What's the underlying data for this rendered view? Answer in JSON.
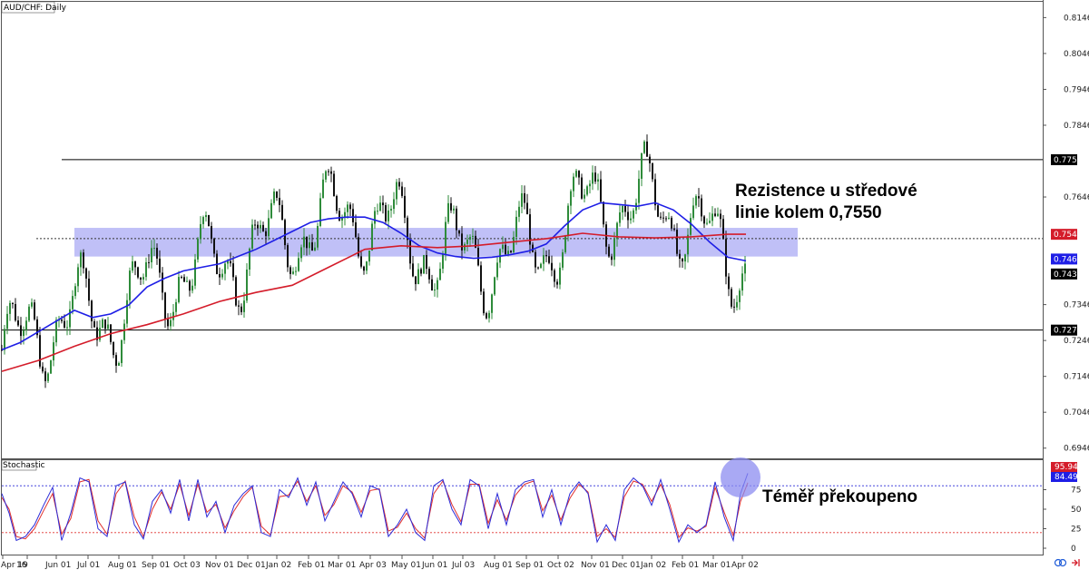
{
  "title": "AUD/CHF: Daily",
  "indicator_label": "Stochastic",
  "annotations": {
    "resistance_line1": "Rezistence u středové",
    "resistance_line2": "linie kolem 0,7550",
    "overbought": "Téměř překoupeno"
  },
  "colors": {
    "bull": "#2e8b3a",
    "bear": "#111111",
    "sma_fast": "#1e1ee6",
    "sma_slow": "#d41c2a",
    "zone": "#8c8cf0",
    "stoch_k": "#2b2bd8",
    "stoch_d": "#e0302e",
    "circle": "#8c8cf0"
  },
  "chart_data": [
    {
      "type": "candlestick",
      "title": "AUD/CHF: Daily",
      "y_ticks": [
        "0.8146",
        "0.8046",
        "0.7946",
        "0.7846",
        "0.7750",
        "0.7646",
        "0.7542",
        "0.7468",
        "0.7439",
        "0.7346",
        "0.7275",
        "0.7246",
        "0.7146",
        "0.7046",
        "0.6946"
      ],
      "ylim": [
        0.692,
        0.819
      ],
      "x_ticks": [
        "Apr 19",
        "16",
        "Jun 01",
        "Jul 01",
        "Aug 01",
        "Sep 01",
        "Oct 03",
        "Nov 01",
        "Dec 01",
        "Jan 02",
        "Feb 01",
        "Mar 01",
        "Apr 03",
        "May 01",
        "Jun 01",
        "Jul 03",
        "Aug 01",
        "Sep 01",
        "Oct 02",
        "Nov 01",
        "Dec 01",
        "Jan 02",
        "Feb 01",
        "Mar 01",
        "Apr 02"
      ],
      "horizontal_lines": [
        {
          "value": 0.775,
          "style": "solid",
          "label": "0.7750"
        },
        {
          "value": 0.7275,
          "style": "solid",
          "label": "0.7275"
        },
        {
          "value": 0.753,
          "style": "dotted"
        }
      ],
      "zone": {
        "from": 0.748,
        "to": 0.756
      },
      "price_tags": [
        {
          "label": "0.7542",
          "color": "red"
        },
        {
          "label": "0.7468",
          "color": "blue"
        },
        {
          "label": "0.7439",
          "color": "black"
        }
      ],
      "series": [
        {
          "name": "SMA fast",
          "points": [
            [
              0,
              0.722
            ],
            [
              20,
              0.724
            ],
            [
              40,
              0.727
            ],
            [
              60,
              0.73
            ],
            [
              80,
              0.733
            ],
            [
              100,
              0.731
            ],
            [
              120,
              0.732
            ],
            [
              140,
              0.7345
            ],
            [
              160,
              0.7395
            ],
            [
              180,
              0.742
            ],
            [
              200,
              0.744
            ],
            [
              220,
              0.745
            ],
            [
              240,
              0.746
            ],
            [
              260,
              0.748
            ],
            [
              280,
              0.75
            ],
            [
              300,
              0.7525
            ],
            [
              320,
              0.755
            ],
            [
              340,
              0.7575
            ],
            [
              360,
              0.7585
            ],
            [
              380,
              0.759
            ],
            [
              400,
              0.759
            ],
            [
              420,
              0.7575
            ],
            [
              440,
              0.7545
            ],
            [
              460,
              0.751
            ],
            [
              480,
              0.749
            ],
            [
              500,
              0.748
            ],
            [
              520,
              0.7475
            ],
            [
              540,
              0.7478
            ],
            [
              560,
              0.7485
            ],
            [
              580,
              0.7495
            ],
            [
              600,
              0.7515
            ],
            [
              620,
              0.7565
            ],
            [
              640,
              0.761
            ],
            [
              660,
              0.763
            ],
            [
              680,
              0.7625
            ],
            [
              700,
              0.762
            ],
            [
              720,
              0.763
            ],
            [
              740,
              0.761
            ],
            [
              760,
              0.757
            ],
            [
              780,
              0.752
            ],
            [
              800,
              0.7478
            ],
            [
              820,
              0.7468
            ]
          ]
        },
        {
          "name": "SMA slow",
          "points": [
            [
              0,
              0.716
            ],
            [
              40,
              0.719
            ],
            [
              80,
              0.723
            ],
            [
              120,
              0.7265
            ],
            [
              160,
              0.729
            ],
            [
              200,
              0.732
            ],
            [
              240,
              0.7355
            ],
            [
              280,
              0.738
            ],
            [
              320,
              0.74
            ],
            [
              360,
              0.745
            ],
            [
              400,
              0.75
            ],
            [
              440,
              0.751
            ],
            [
              480,
              0.7505
            ],
            [
              520,
              0.751
            ],
            [
              560,
              0.752
            ],
            [
              600,
              0.753
            ],
            [
              640,
              0.7545
            ],
            [
              680,
              0.7535
            ],
            [
              720,
              0.7532
            ],
            [
              760,
              0.7535
            ],
            [
              800,
              0.7542
            ],
            [
              820,
              0.7542
            ]
          ]
        }
      ]
    },
    {
      "type": "line",
      "title": "Stochastic",
      "y_ticks": [
        "100",
        "75",
        "50",
        "25",
        "0"
      ],
      "ylim": [
        0,
        100
      ],
      "levels": [
        80,
        20
      ],
      "current_values": [
        "95.94",
        "84.49"
      ],
      "series": [
        {
          "name": "%K",
          "points": [
            [
              0,
              70
            ],
            [
              8,
              45
            ],
            [
              16,
              10
            ],
            [
              26,
              15
            ],
            [
              36,
              30
            ],
            [
              46,
              55
            ],
            [
              56,
              78
            ],
            [
              66,
              10
            ],
            [
              76,
              45
            ],
            [
              86,
              90
            ],
            [
              96,
              85
            ],
            [
              106,
              25
            ],
            [
              116,
              15
            ],
            [
              126,
              80
            ],
            [
              136,
              85
            ],
            [
              146,
              30
            ],
            [
              156,
              12
            ],
            [
              166,
              60
            ],
            [
              176,
              75
            ],
            [
              186,
              45
            ],
            [
              196,
              88
            ],
            [
              206,
              35
            ],
            [
              216,
              88
            ],
            [
              226,
              40
            ],
            [
              236,
              60
            ],
            [
              246,
              20
            ],
            [
              256,
              55
            ],
            [
              266,
              70
            ],
            [
              276,
              80
            ],
            [
              286,
              20
            ],
            [
              296,
              15
            ],
            [
              306,
              75
            ],
            [
              316,
              65
            ],
            [
              326,
              90
            ],
            [
              336,
              55
            ],
            [
              346,
              85
            ],
            [
              356,
              35
            ],
            [
              366,
              60
            ],
            [
              376,
              85
            ],
            [
              386,
              70
            ],
            [
              396,
              40
            ],
            [
              406,
              80
            ],
            [
              416,
              75
            ],
            [
              426,
              15
            ],
            [
              436,
              30
            ],
            [
              446,
              50
            ],
            [
              456,
              20
            ],
            [
              466,
              10
            ],
            [
              476,
              80
            ],
            [
              486,
              88
            ],
            [
              496,
              50
            ],
            [
              506,
              30
            ],
            [
              516,
              88
            ],
            [
              526,
              80
            ],
            [
              536,
              25
            ],
            [
              546,
              70
            ],
            [
              556,
              30
            ],
            [
              566,
              75
            ],
            [
              576,
              85
            ],
            [
              586,
              88
            ],
            [
              596,
              40
            ],
            [
              606,
              75
            ],
            [
              616,
              30
            ],
            [
              626,
              70
            ],
            [
              636,
              85
            ],
            [
              646,
              70
            ],
            [
              656,
              8
            ],
            [
              666,
              30
            ],
            [
              676,
              10
            ],
            [
              686,
              75
            ],
            [
              696,
              90
            ],
            [
              706,
              80
            ],
            [
              716,
              55
            ],
            [
              726,
              88
            ],
            [
              736,
              50
            ],
            [
              746,
              8
            ],
            [
              756,
              30
            ],
            [
              766,
              20
            ],
            [
              776,
              30
            ],
            [
              786,
              85
            ],
            [
              796,
              40
            ],
            [
              806,
              10
            ],
            [
              814,
              70
            ],
            [
              822,
              96
            ]
          ]
        },
        {
          "name": "%D",
          "points": [
            [
              0,
              65
            ],
            [
              8,
              50
            ],
            [
              16,
              15
            ],
            [
              26,
              12
            ],
            [
              36,
              25
            ],
            [
              46,
              48
            ],
            [
              56,
              70
            ],
            [
              66,
              18
            ],
            [
              76,
              38
            ],
            [
              86,
              85
            ],
            [
              96,
              88
            ],
            [
              106,
              35
            ],
            [
              116,
              18
            ],
            [
              126,
              70
            ],
            [
              136,
              86
            ],
            [
              146,
              40
            ],
            [
              156,
              15
            ],
            [
              166,
              50
            ],
            [
              176,
              72
            ],
            [
              186,
              50
            ],
            [
              196,
              82
            ],
            [
              206,
              42
            ],
            [
              216,
              82
            ],
            [
              226,
              46
            ],
            [
              236,
              56
            ],
            [
              246,
              26
            ],
            [
              256,
              48
            ],
            [
              266,
              66
            ],
            [
              276,
              78
            ],
            [
              286,
              28
            ],
            [
              296,
              17
            ],
            [
              306,
              66
            ],
            [
              316,
              68
            ],
            [
              326,
              86
            ],
            [
              336,
              60
            ],
            [
              346,
              80
            ],
            [
              356,
              42
            ],
            [
              366,
              56
            ],
            [
              376,
              80
            ],
            [
              386,
              72
            ],
            [
              396,
              46
            ],
            [
              406,
              74
            ],
            [
              416,
              76
            ],
            [
              426,
              22
            ],
            [
              436,
              27
            ],
            [
              446,
              45
            ],
            [
              456,
              25
            ],
            [
              466,
              13
            ],
            [
              476,
              70
            ],
            [
              486,
              86
            ],
            [
              496,
              56
            ],
            [
              506,
              34
            ],
            [
              516,
              82
            ],
            [
              526,
              82
            ],
            [
              536,
              32
            ],
            [
              546,
              62
            ],
            [
              556,
              36
            ],
            [
              566,
              68
            ],
            [
              576,
              82
            ],
            [
              586,
              86
            ],
            [
              596,
              48
            ],
            [
              606,
              68
            ],
            [
              616,
              36
            ],
            [
              626,
              64
            ],
            [
              636,
              82
            ],
            [
              646,
              72
            ],
            [
              656,
              15
            ],
            [
              666,
              25
            ],
            [
              676,
              14
            ],
            [
              686,
              66
            ],
            [
              696,
              86
            ],
            [
              706,
              82
            ],
            [
              716,
              60
            ],
            [
              726,
              82
            ],
            [
              736,
              56
            ],
            [
              746,
              14
            ],
            [
              756,
              26
            ],
            [
              766,
              22
            ],
            [
              776,
              28
            ],
            [
              786,
              78
            ],
            [
              796,
              46
            ],
            [
              806,
              16
            ],
            [
              814,
              60
            ],
            [
              822,
              84
            ]
          ]
        }
      ]
    }
  ]
}
